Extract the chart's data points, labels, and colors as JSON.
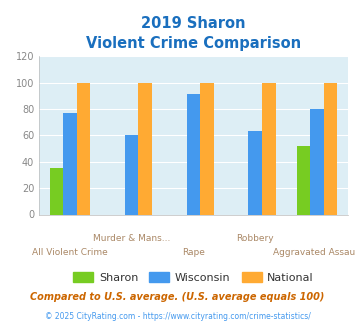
{
  "title_line1": "2019 Sharon",
  "title_line2": "Violent Crime Comparison",
  "title_color": "#1a6fbe",
  "categories_line1": [
    "",
    "Murder & Mans...",
    "",
    "Robbery",
    ""
  ],
  "categories_line2": [
    "All Violent Crime",
    "",
    "Rape",
    "",
    "Aggravated Assault"
  ],
  "groups": [
    "All Violent Crime",
    "Murder & Mans...",
    "Rape",
    "Robbery",
    "Aggravated Assault"
  ],
  "sharon": [
    35,
    0,
    0,
    0,
    52
  ],
  "wisconsin": [
    77,
    60,
    91,
    63,
    80
  ],
  "national": [
    100,
    100,
    100,
    100,
    100
  ],
  "sharon_color": "#77cc22",
  "wisconsin_color": "#4499ee",
  "national_color": "#ffaa33",
  "ylim": [
    0,
    120
  ],
  "yticks": [
    0,
    20,
    40,
    60,
    80,
    100,
    120
  ],
  "footnote1": "Compared to U.S. average. (U.S. average equals 100)",
  "footnote2": "© 2025 CityRating.com - https://www.cityrating.com/crime-statistics/",
  "footnote1_color": "#cc6600",
  "footnote2_color": "#4499ee",
  "fig_bg_color": "#ffffff",
  "plot_bg_color": "#ddeef5",
  "legend_labels": [
    "Sharon",
    "Wisconsin",
    "National"
  ],
  "legend_text_color": "#333333",
  "xlabel_color": "#aa8866",
  "yticklabel_color": "#888888",
  "bar_width": 0.22
}
